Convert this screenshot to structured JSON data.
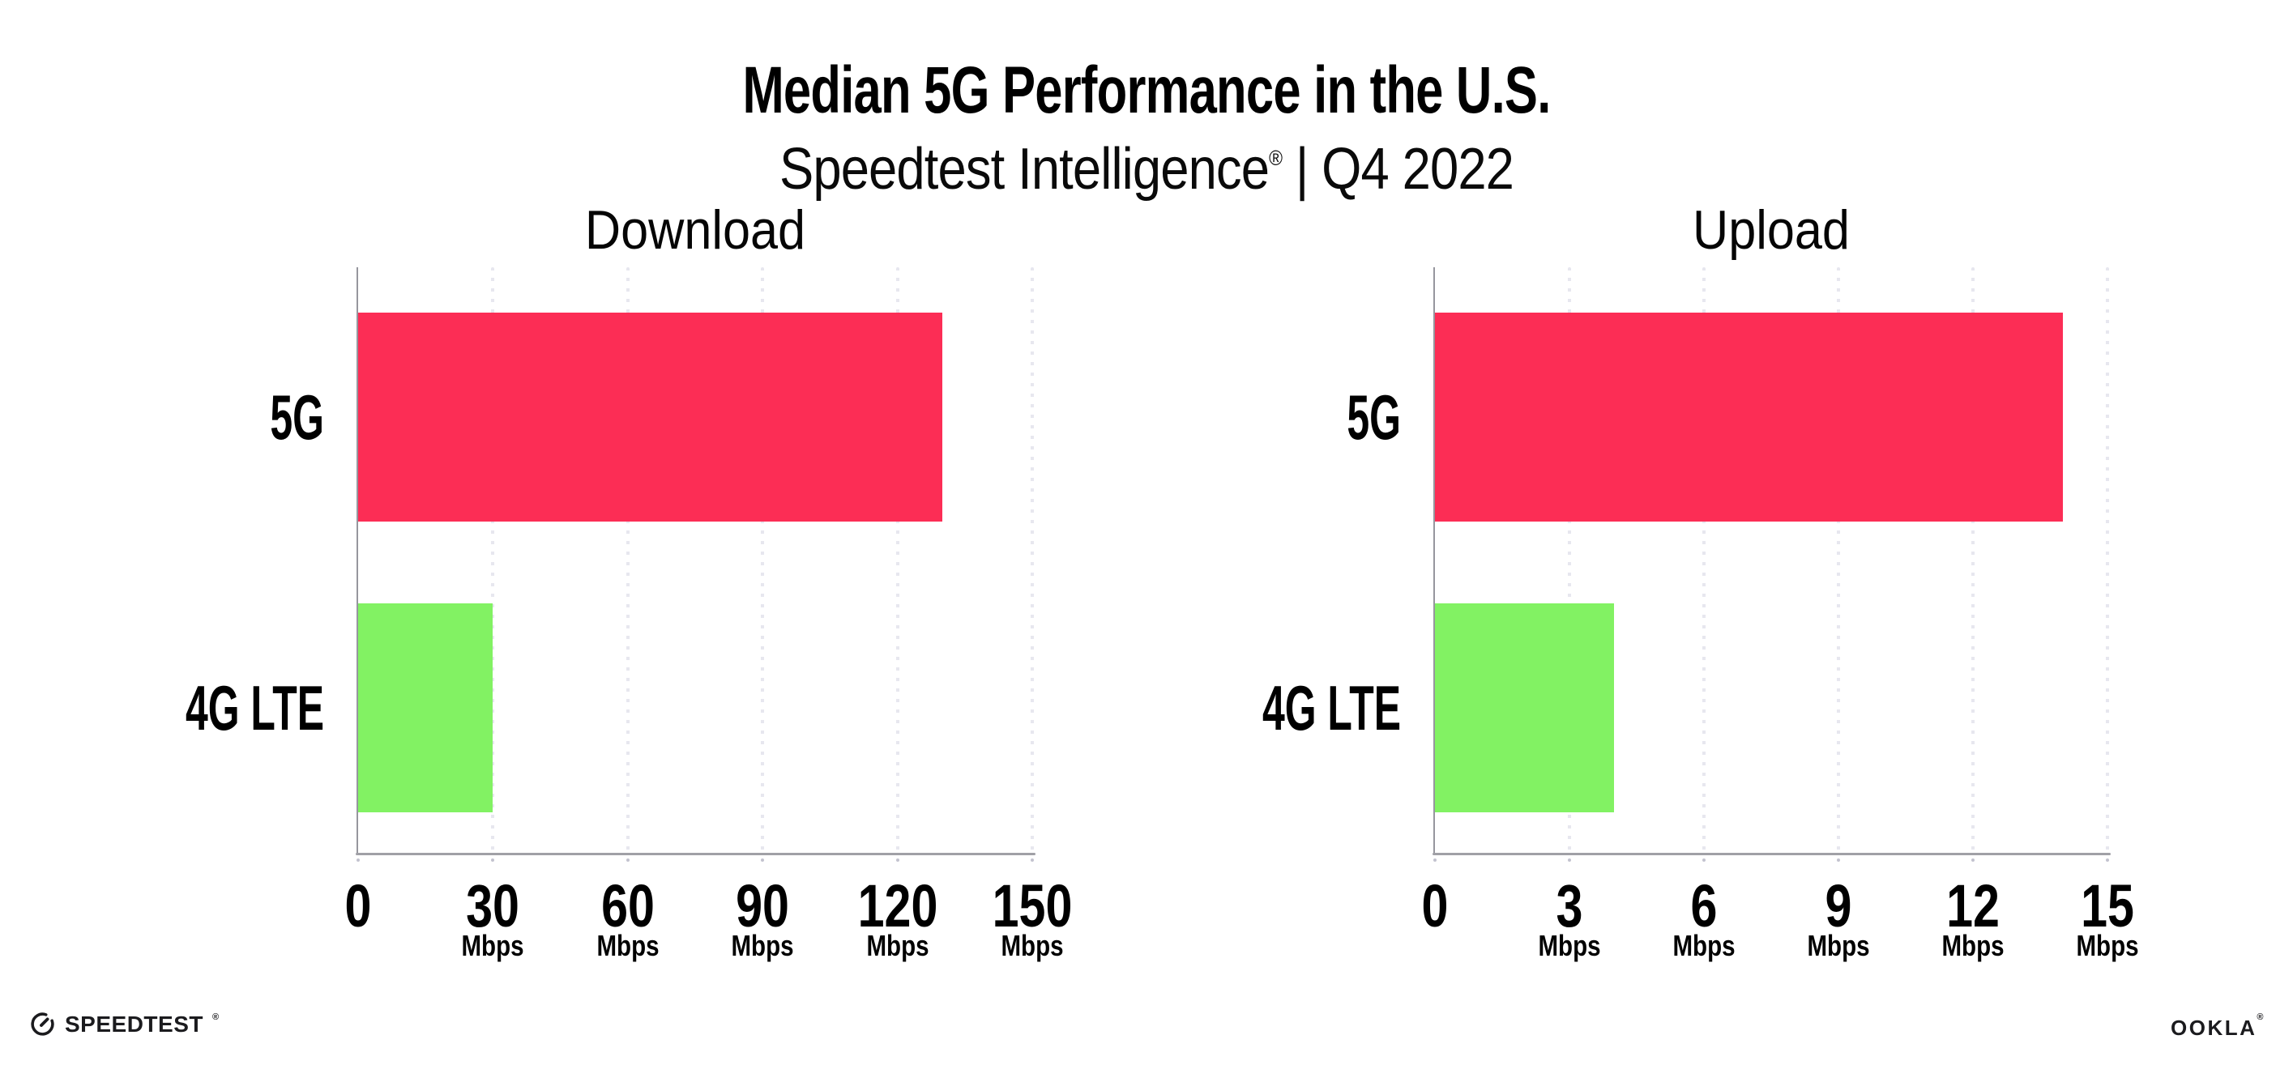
{
  "header": {
    "title": "Median 5G Performance in the U.S.",
    "subtitle_brand": "Speedtest Intelligence",
    "subtitle_reg": "®",
    "subtitle_period": " | Q4 2022"
  },
  "chart_data": [
    {
      "type": "bar",
      "orientation": "horizontal",
      "title": "Download",
      "categories": [
        "5G",
        "4G LTE"
      ],
      "values": [
        130,
        30
      ],
      "unit": "Mbps",
      "xlabel": "",
      "ylabel": "",
      "xlim": [
        0,
        150
      ],
      "xticks": [
        0,
        30,
        60,
        90,
        120,
        150
      ],
      "series_colors": [
        "#fc2d55",
        "#82f263"
      ],
      "grid": "vertical-dotted",
      "legend_position": "none"
    },
    {
      "type": "bar",
      "orientation": "horizontal",
      "title": "Upload",
      "categories": [
        "5G",
        "4G LTE"
      ],
      "values": [
        14,
        4
      ],
      "unit": "Mbps",
      "xlabel": "",
      "ylabel": "",
      "xlim": [
        0,
        15
      ],
      "xticks": [
        0,
        3,
        6,
        9,
        12,
        15
      ],
      "series_colors": [
        "#fc2d55",
        "#82f263"
      ],
      "grid": "vertical-dotted",
      "legend_position": "none"
    }
  ],
  "footer": {
    "speedtest_label": "SPEEDTEST",
    "speedtest_reg": "®",
    "ookla_label": "OOKLA",
    "ookla_reg": "®"
  },
  "colors": {
    "bar_5g": "#fc2d55",
    "bar_4g_lte": "#82f263",
    "grid": "#e7e7ef",
    "spine": "#9a9aa2",
    "tick": "#c3c3cf",
    "text": "#000000",
    "background": "#ffffff"
  }
}
